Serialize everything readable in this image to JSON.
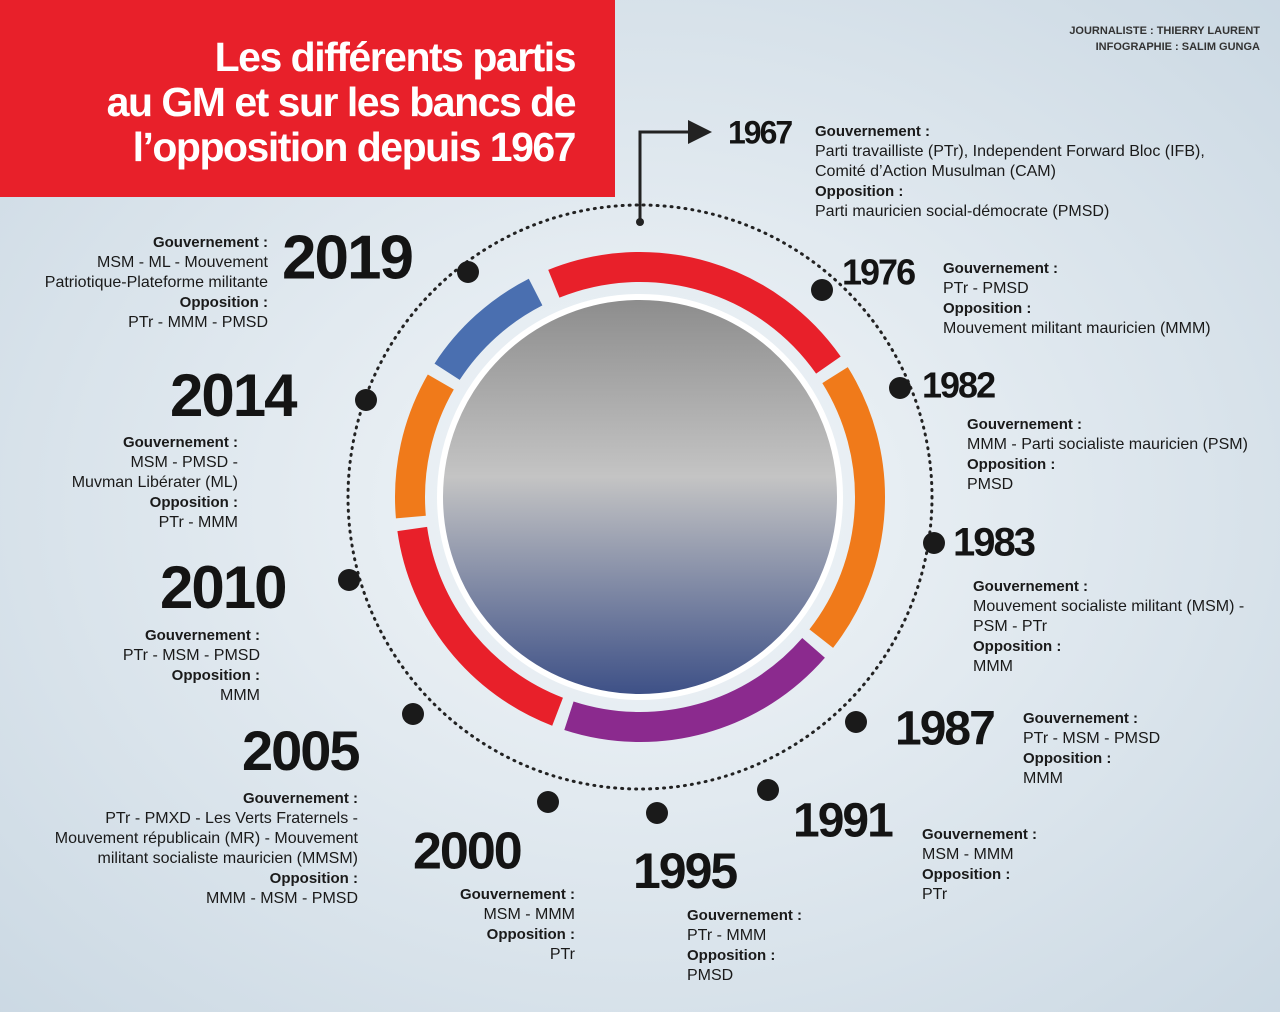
{
  "header": {
    "title": [
      "Les différents partis",
      "au GM et sur les bancs de",
      "l’opposition depuis 1967"
    ],
    "credits": [
      "JOURNALISTE : THIERRY LAURENT",
      "INFOGRAPHIE : SALIM GUNGA"
    ]
  },
  "entries": [
    {
      "year": "1967",
      "government_label": "Gouvernement :",
      "government": [
        "Parti travailliste (PTr), Independent Forward Bloc (IFB),",
        "Comité d’Action Musulman (CAM)"
      ],
      "opposition_label": "Opposition :",
      "opposition": [
        "Parti mauricien social-démocrate (PMSD)"
      ]
    },
    {
      "year": "1976",
      "government_label": "Gouvernement :",
      "government": [
        "PTr - PMSD"
      ],
      "opposition_label": "Opposition :",
      "opposition": [
        "Mouvement militant mauricien (MMM)"
      ]
    },
    {
      "year": "1982",
      "government_label": "Gouvernement :",
      "government": [
        "MMM - Parti socialiste mauricien (PSM)"
      ],
      "opposition_label": "Opposition :",
      "opposition": [
        "PMSD"
      ]
    },
    {
      "year": "1983",
      "government_label": "Gouvernement :",
      "government": [
        "Mouvement socialiste militant (MSM) -",
        "PSM - PTr"
      ],
      "opposition_label": "Opposition :",
      "opposition": [
        "MMM"
      ]
    },
    {
      "year": "1987",
      "government_label": "Gouvernement :",
      "government": [
        "PTr - MSM - PMSD"
      ],
      "opposition_label": "Opposition :",
      "opposition": [
        "MMM"
      ]
    },
    {
      "year": "1991",
      "government_label": "Gouvernement :",
      "government": [
        "MSM - MMM"
      ],
      "opposition_label": "Opposition :",
      "opposition": [
        "PTr"
      ]
    },
    {
      "year": "1995",
      "government_label": "Gouvernement :",
      "government": [
        "PTr - MMM"
      ],
      "opposition_label": "Opposition :",
      "opposition": [
        "PMSD"
      ]
    },
    {
      "year": "2000",
      "government_label": "Gouvernement :",
      "government": [
        "MSM - MMM"
      ],
      "opposition_label": "Opposition :",
      "opposition": [
        "PTr"
      ]
    },
    {
      "year": "2005",
      "government_label": "Gouvernement :",
      "government": [
        "PTr - PMXD - Les Verts Fraternels -",
        "Mouvement républicain (MR) - Mouvement",
        "militant socialiste mauricien (MMSM)"
      ],
      "opposition_label": "Opposition :",
      "opposition": [
        "MMM - MSM - PMSD"
      ]
    },
    {
      "year": "2010",
      "government_label": "Gouvernement :",
      "government": [
        "PTr - MSM - PMSD"
      ],
      "opposition_label": "Opposition :",
      "opposition": [
        "MMM"
      ]
    },
    {
      "year": "2014",
      "government_label": "Gouvernement :",
      "government": [
        "MSM - PMSD -",
        "Muvman Libérater (ML)"
      ],
      "opposition_label": "Opposition :",
      "opposition": [
        "PTr - MMM"
      ]
    },
    {
      "year": "2019",
      "government_label": "Gouvernement :",
      "government": [
        "MSM - ML - Mouvement",
        "Patriotique-Plateforme militante"
      ],
      "opposition_label": "Opposition :",
      "opposition": [
        "PTr - MMM - PMSD"
      ]
    }
  ]
}
